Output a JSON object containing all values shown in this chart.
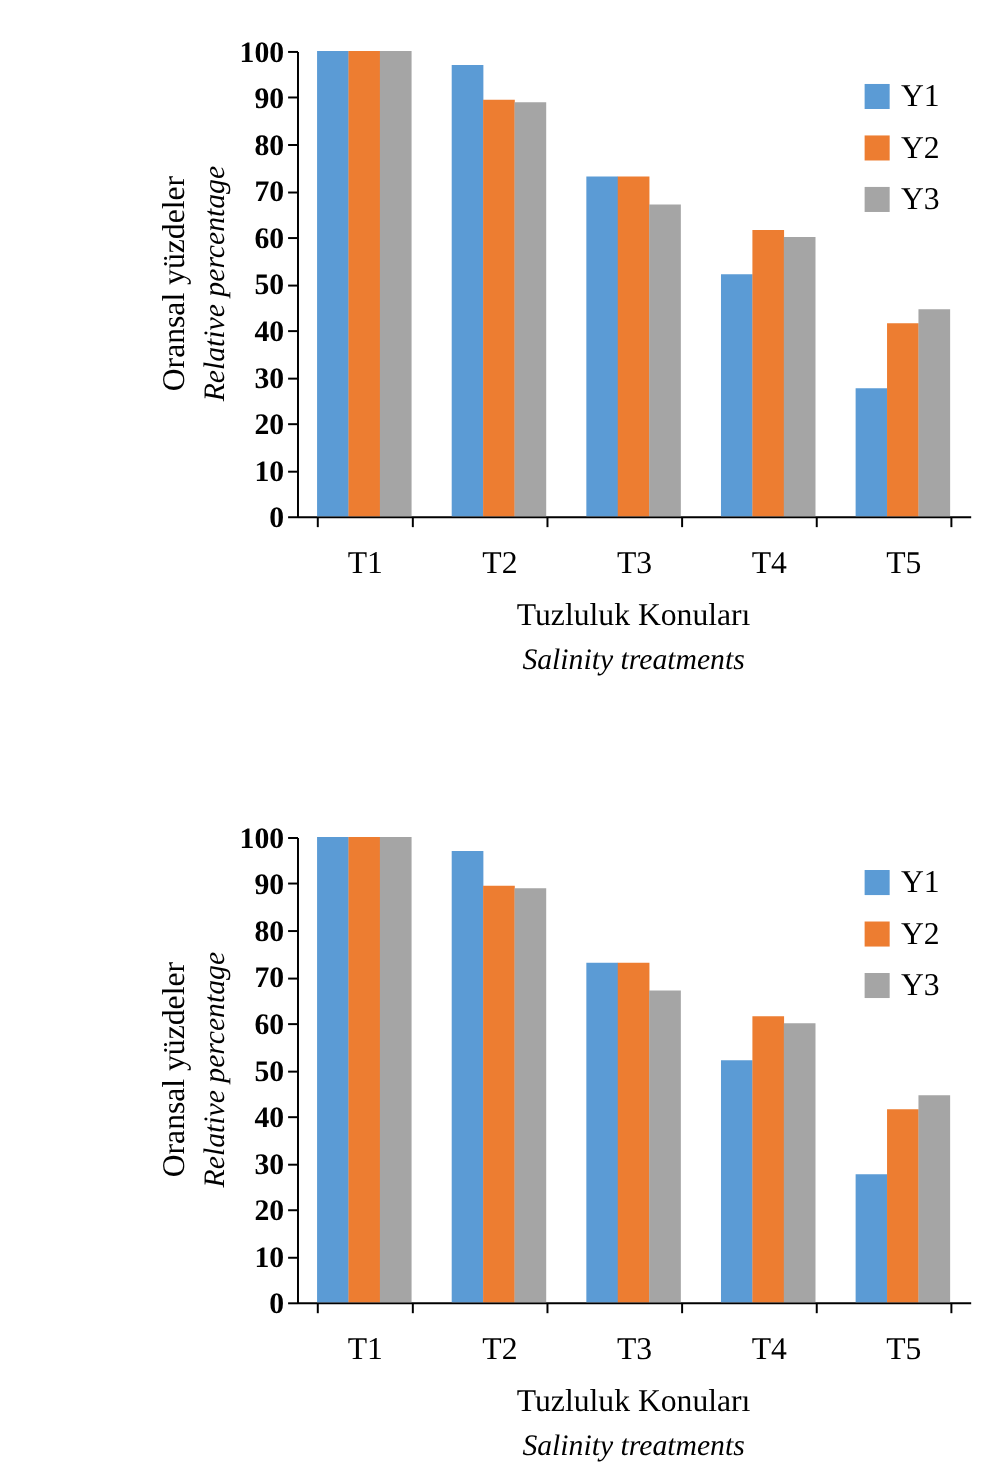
{
  "chart_data": [
    {
      "type": "bar",
      "categories": [
        "T1",
        "T2",
        "T3",
        "T4",
        "T5"
      ],
      "xlabel": "Tuzluluk Konuları\nSalinity treatments",
      "ylabel": "Oransal yüzdeler\nRelative percentage",
      "ylim": [
        0,
        100
      ],
      "yticks": [
        0,
        10,
        20,
        30,
        40,
        50,
        60,
        70,
        80,
        90,
        100
      ],
      "grid": false,
      "legend": "top right",
      "series": [
        {
          "name": "Y1",
          "color": "#5b9bd5",
          "values": [
            100,
            97,
            73,
            52,
            27.5
          ]
        },
        {
          "name": "Y2",
          "color": "#ed7d31",
          "values": [
            100,
            89.5,
            73,
            61.5,
            41.5
          ]
        },
        {
          "name": "Y3",
          "color": "#a5a5a5",
          "values": [
            100,
            89,
            67,
            60,
            44.5
          ]
        }
      ]
    },
    {
      "type": "bar",
      "categories": [
        "T1",
        "T2",
        "T3",
        "T4",
        "T5"
      ],
      "xlabel": "Tuzluluk Konuları\nSalinity treatments",
      "ylabel": "Oransal yüzdeler\nRelative percentage",
      "ylim": [
        0,
        100
      ],
      "yticks": [
        0,
        10,
        20,
        30,
        40,
        50,
        60,
        70,
        80,
        90,
        100
      ],
      "grid": false,
      "legend": "top right",
      "series": [
        {
          "name": "Y1",
          "color": "#5b9bd5",
          "values": [
            100,
            97,
            73,
            52,
            27.5
          ]
        },
        {
          "name": "Y2",
          "color": "#ed7d31",
          "values": [
            100,
            89.5,
            73,
            61.5,
            41.5
          ]
        },
        {
          "name": "Y3",
          "color": "#a5a5a5",
          "values": [
            100,
            89,
            67,
            60,
            44.5
          ]
        }
      ]
    }
  ]
}
